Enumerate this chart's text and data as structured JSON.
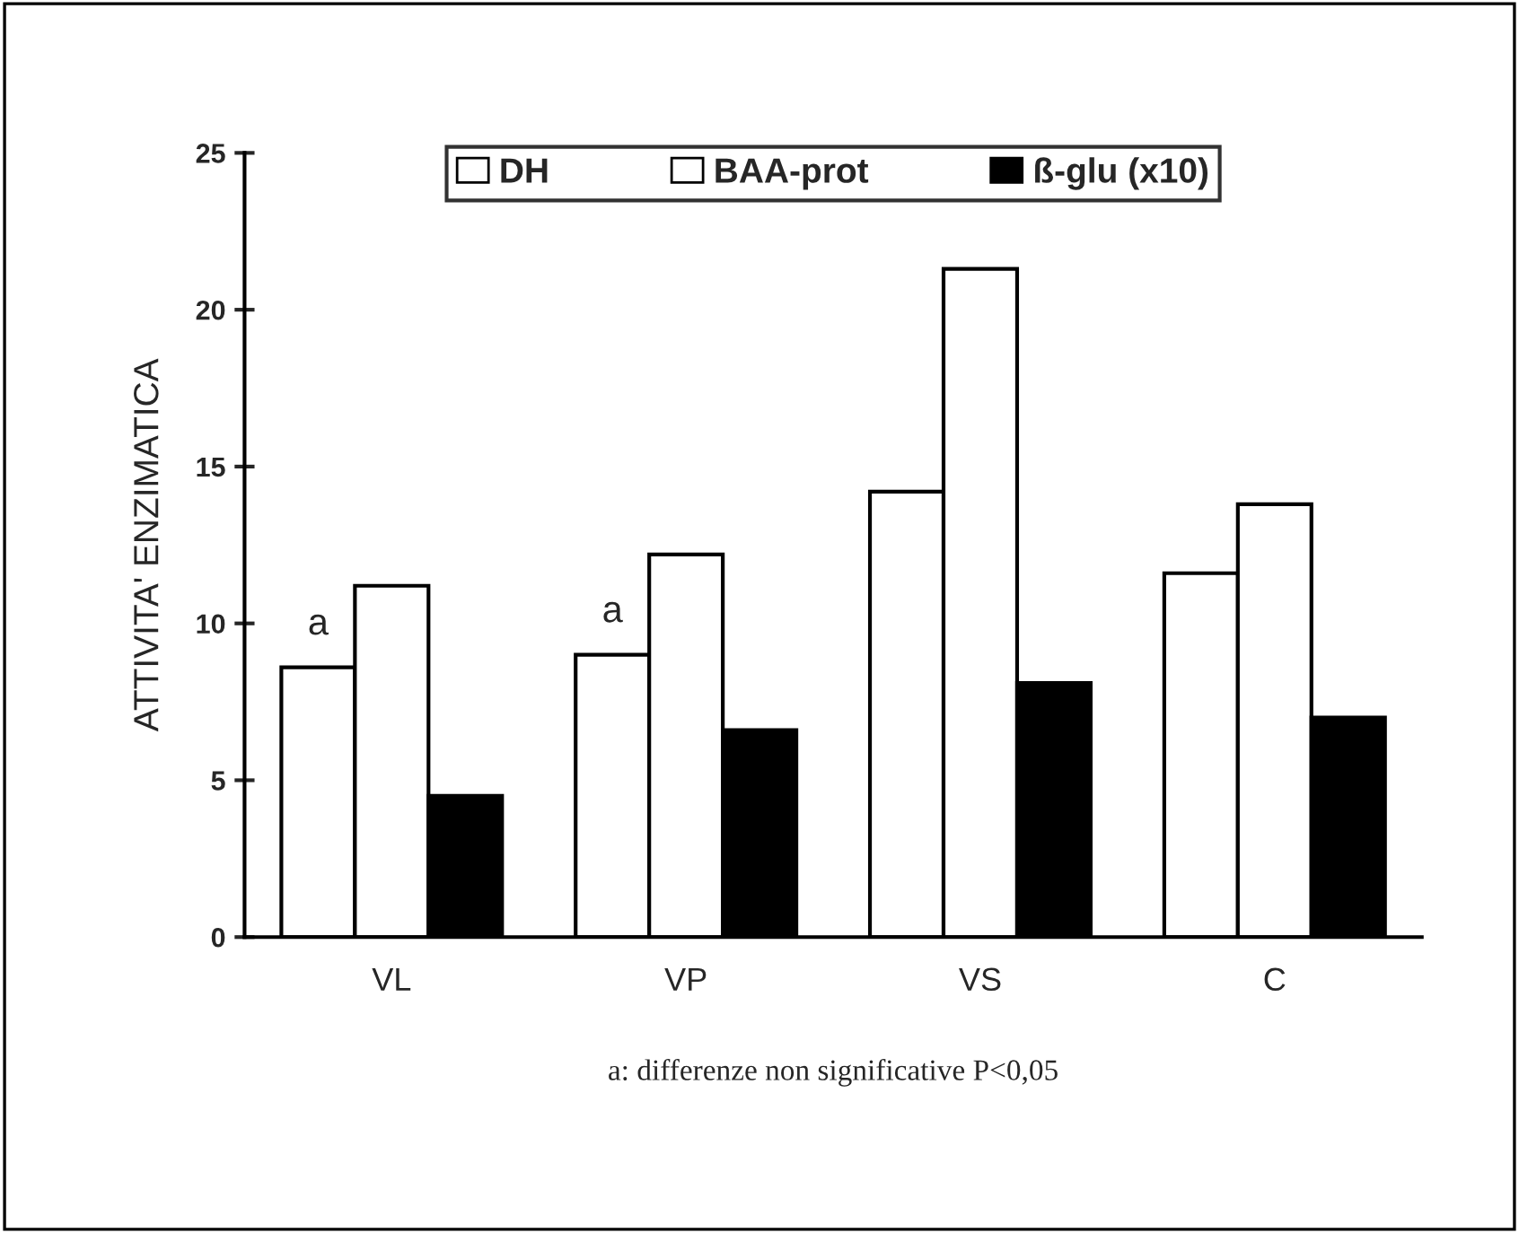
{
  "chart_data": {
    "type": "bar",
    "ylabel": "ATTIVITA' ENZIMATICA",
    "categories": [
      "VL",
      "VP",
      "VS",
      "C"
    ],
    "series": [
      {
        "name": "DH",
        "color": "#ffffff",
        "values": [
          8.6,
          9.0,
          14.2,
          11.6
        ]
      },
      {
        "name": "BAA-prot",
        "color": "#ffffff",
        "values": [
          11.2,
          12.2,
          21.3,
          13.8
        ]
      },
      {
        "name": "ß-glu (x10)",
        "color": "#000000",
        "values": [
          4.5,
          6.6,
          8.1,
          7.0
        ]
      }
    ],
    "ylim": [
      0,
      25
    ],
    "yticks": [
      0,
      5,
      10,
      15,
      20,
      25
    ],
    "grid": false,
    "legend": "top",
    "annotations": [
      "a",
      "a",
      "a: differenze non significative P<0,05"
    ]
  }
}
